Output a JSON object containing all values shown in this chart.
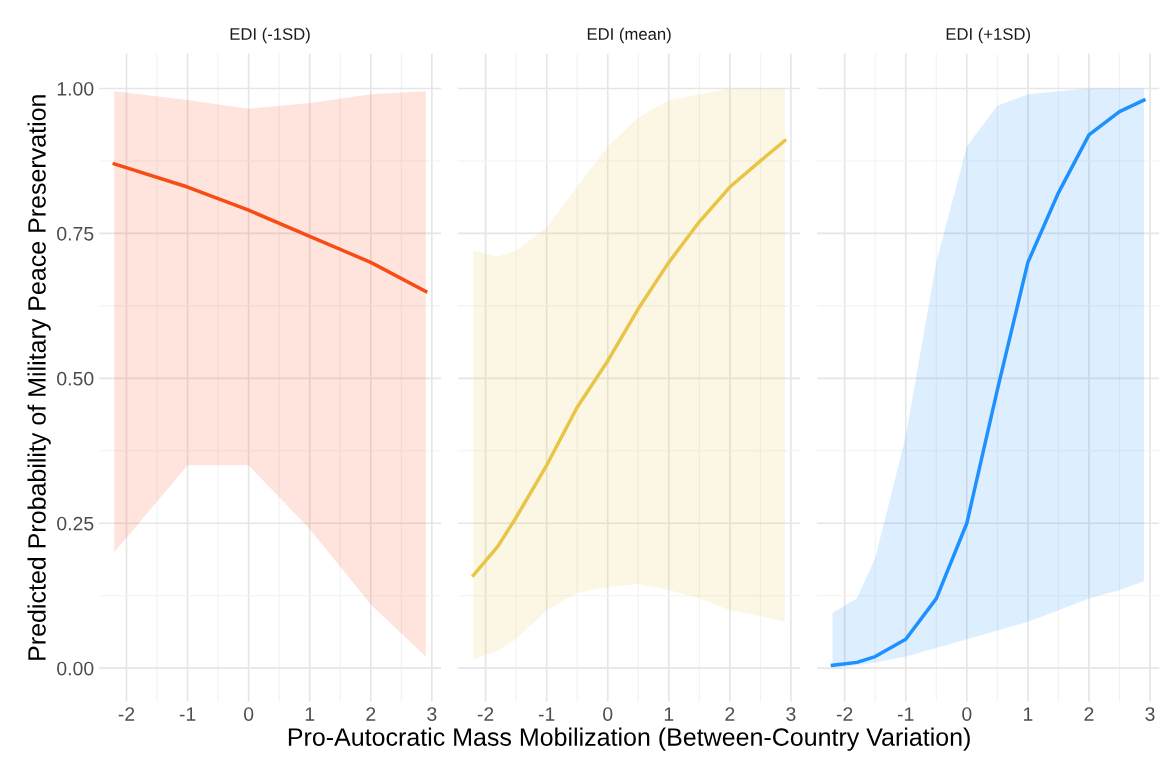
{
  "chart_data": [
    {
      "type": "line",
      "title": "EDI (-1SD)",
      "ylabel": "Predicted Probability of Military Peace Preservation",
      "xlim": [
        -2.45,
        3.15
      ],
      "ylim": [
        -0.058,
        1.06
      ],
      "xticks": [
        -2,
        -1,
        0,
        1,
        2,
        3
      ],
      "yticks": [
        {
          "value": 0,
          "label": "0.00"
        },
        {
          "value": 0.25,
          "label": "0.25"
        },
        {
          "value": 0.5,
          "label": "0.50"
        },
        {
          "value": 0.75,
          "label": "0.75"
        },
        {
          "value": 1,
          "label": "1.00"
        }
      ],
      "grid": true,
      "legend": false,
      "series": [
        {
          "color": "#f84b15",
          "x": [
            -2.2,
            -1,
            0,
            1,
            2,
            2.9
          ],
          "values": [
            0.87,
            0.83,
            0.79,
            0.745,
            0.7,
            0.65
          ],
          "lower": [
            0.2,
            0.35,
            0.35,
            0.24,
            0.11,
            0.02
          ],
          "upper": [
            0.995,
            0.98,
            0.965,
            0.975,
            0.99,
            0.995
          ]
        }
      ]
    },
    {
      "type": "line",
      "title": "EDI (mean)",
      "xlabel": "Pro-Autocratic Mass Mobilization (Between-Country Variation)",
      "xlim": [
        -2.45,
        3.15
      ],
      "ylim": [
        -0.058,
        1.06
      ],
      "xticks": [
        -2,
        -1,
        0,
        1,
        2,
        3
      ],
      "grid": true,
      "legend": false,
      "tick_labels": "x",
      "series": [
        {
          "color": "#e8c547",
          "x": [
            -2.2,
            -1.8,
            -1.5,
            -1,
            -0.5,
            0,
            0.5,
            1,
            1.5,
            2,
            2.5,
            2.9
          ],
          "values": [
            0.16,
            0.21,
            0.26,
            0.35,
            0.45,
            0.53,
            0.62,
            0.7,
            0.77,
            0.83,
            0.875,
            0.91
          ],
          "lower": [
            0.015,
            0.03,
            0.05,
            0.1,
            0.13,
            0.14,
            0.145,
            0.135,
            0.12,
            0.1,
            0.09,
            0.08
          ],
          "upper": [
            0.72,
            0.71,
            0.72,
            0.76,
            0.83,
            0.9,
            0.95,
            0.98,
            0.99,
            1.0,
            1.0,
            1.0
          ]
        }
      ]
    },
    {
      "type": "line",
      "title": "EDI (+1SD)",
      "xlim": [
        -2.45,
        3.15
      ],
      "ylim": [
        -0.058,
        1.06
      ],
      "xticks": [
        -2,
        -1,
        0,
        1,
        2,
        3
      ],
      "grid": true,
      "legend": false,
      "tick_labels": "x",
      "series": [
        {
          "color": "#1e90ff",
          "x": [
            -2.2,
            -1.8,
            -1.5,
            -1,
            -0.5,
            0,
            0.5,
            1,
            1.5,
            2,
            2.5,
            2.9
          ],
          "values": [
            0.005,
            0.01,
            0.02,
            0.05,
            0.12,
            0.25,
            0.48,
            0.7,
            0.82,
            0.92,
            0.96,
            0.98
          ],
          "lower": [
            0.0,
            0.005,
            0.01,
            0.02,
            0.035,
            0.05,
            0.065,
            0.08,
            0.1,
            0.12,
            0.135,
            0.15
          ],
          "upper": [
            0.095,
            0.12,
            0.19,
            0.4,
            0.7,
            0.9,
            0.97,
            0.99,
            0.995,
            1.0,
            1.0,
            1.0
          ]
        }
      ]
    }
  ]
}
